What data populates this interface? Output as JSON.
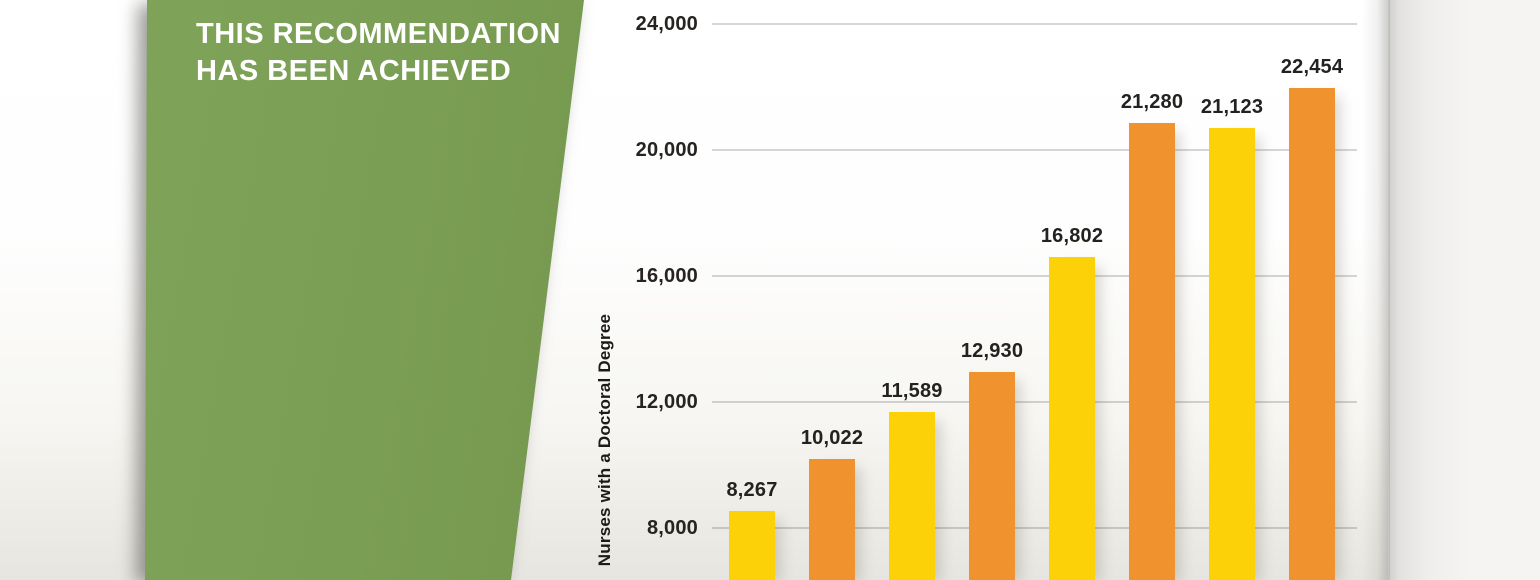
{
  "banner": {
    "line1": "THIS RECOMMENDATION",
    "line2": "HAS BEEN ACHIEVED",
    "background_color": "#7a9e53",
    "text_color": "#ffffff"
  },
  "chart_data": {
    "type": "bar",
    "title": "",
    "ylabel": "Nurses with a Doctoral Degree",
    "values": [
      8267,
      10022,
      11589,
      12930,
      16802,
      21280,
      21123,
      22454
    ],
    "value_labels": [
      "8,267",
      "10,022",
      "11,589",
      "12,930",
      "16,802",
      "21,280",
      "21,123",
      "22,454"
    ],
    "bar_colors": [
      "#fdd108",
      "#f0922d",
      "#fdd108",
      "#f0922d",
      "#fdd108",
      "#f0922d",
      "#fdd108",
      "#f0922d"
    ],
    "y_axis": {
      "ticks": [
        {
          "value": 24000,
          "label": "24,000"
        },
        {
          "value": 20000,
          "label": "20,000"
        },
        {
          "value": 16000,
          "label": "16,000"
        },
        {
          "value": 12000,
          "label": "12,000"
        },
        {
          "value": 8000,
          "label": "8,000"
        }
      ],
      "visible_range": [
        6400,
        24700
      ]
    },
    "grid": "horizontal",
    "legend_position": "none",
    "colors": {
      "bar_yellow": "#fdd108",
      "bar_orange": "#f0922d",
      "gridline": "#c9c8c4",
      "label_text": "#242220"
    }
  }
}
